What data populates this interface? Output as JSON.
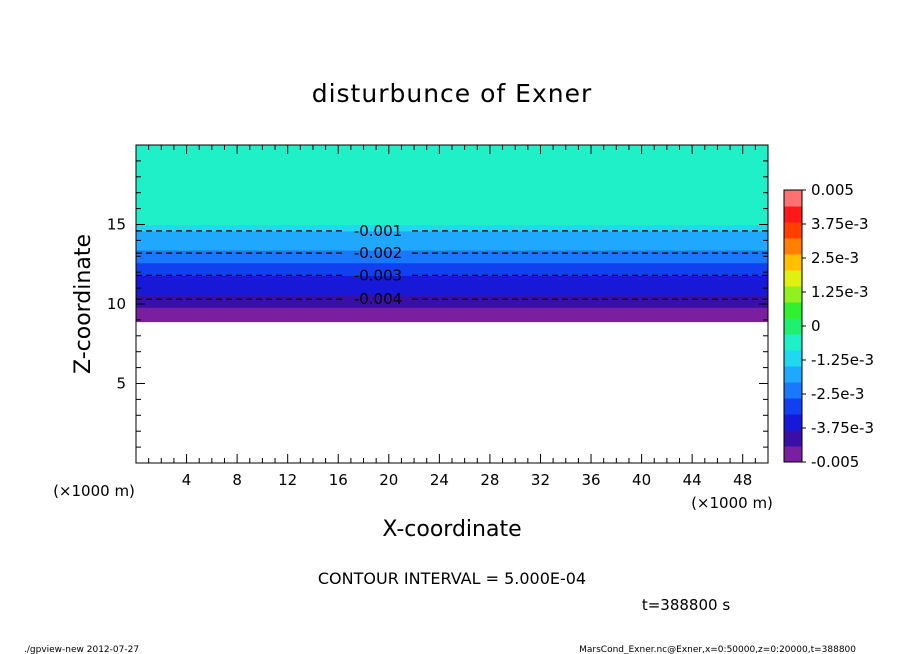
{
  "chart_data": {
    "type": "heatmap",
    "title": "disturbunce of Exner",
    "xlabel": "X-coordinate",
    "ylabel": "Z-coordinate",
    "x_unit": "(×1000 m)",
    "y_unit": "(×1000 m)",
    "xlim": [
      0,
      50
    ],
    "ylim": [
      0,
      20
    ],
    "x_ticks": [
      "4",
      "8",
      "12",
      "16",
      "20",
      "24",
      "28",
      "32",
      "36",
      "40",
      "44",
      "48"
    ],
    "y_ticks": [
      "5",
      "10",
      "15"
    ],
    "z_profile": {
      "z": [
        8.9,
        9.0,
        9.4,
        9.8,
        10.2,
        10.6,
        11.0,
        11.4,
        11.8,
        12.2,
        12.6,
        13.0,
        13.4,
        13.8,
        14.2,
        14.6,
        15.0,
        20.0
      ],
      "value": [
        -0.005,
        -0.00475,
        -0.0045,
        -0.00425,
        -0.004,
        -0.00375,
        -0.0035,
        -0.00325,
        -0.003,
        -0.00275,
        -0.0025,
        -0.00225,
        -0.002,
        -0.00175,
        -0.0015,
        -0.00125,
        -0.0008,
        0.0
      ]
    },
    "contours": [
      {
        "label": "-0.001",
        "z": 14.6
      },
      {
        "label": "-0.002",
        "z": 13.2
      },
      {
        "label": "-0.003",
        "z": 11.8
      },
      {
        "label": "-0.004",
        "z": 10.3
      }
    ],
    "colorbar": {
      "range": [
        -0.005,
        0.005
      ],
      "tick_labels": [
        "0.005",
        "3.75e-3",
        "2.5e-3",
        "1.25e-3",
        "0",
        "-1.25e-3",
        "-2.5e-3",
        "-3.75e-3",
        "-0.005"
      ],
      "colors": [
        "#7a1fa0",
        "#3a0fa8",
        "#1818d8",
        "#1040f0",
        "#1a78ff",
        "#20a8ff",
        "#20d8f0",
        "#20f0c8",
        "#20f070",
        "#30f030",
        "#90f020",
        "#e0f010",
        "#ffc000",
        "#ff8000",
        "#ff4000",
        "#ff1818",
        "#ff7070"
      ]
    },
    "contour_interval": "CONTOUR INTERVAL = 5.000E-04",
    "time": "t=388800 s"
  },
  "footer": {
    "left": "./gpview-new   2012-07-27",
    "right": "MarsCond_Exner.nc@Exner,x=0:50000,z=0:20000,t=388800"
  }
}
